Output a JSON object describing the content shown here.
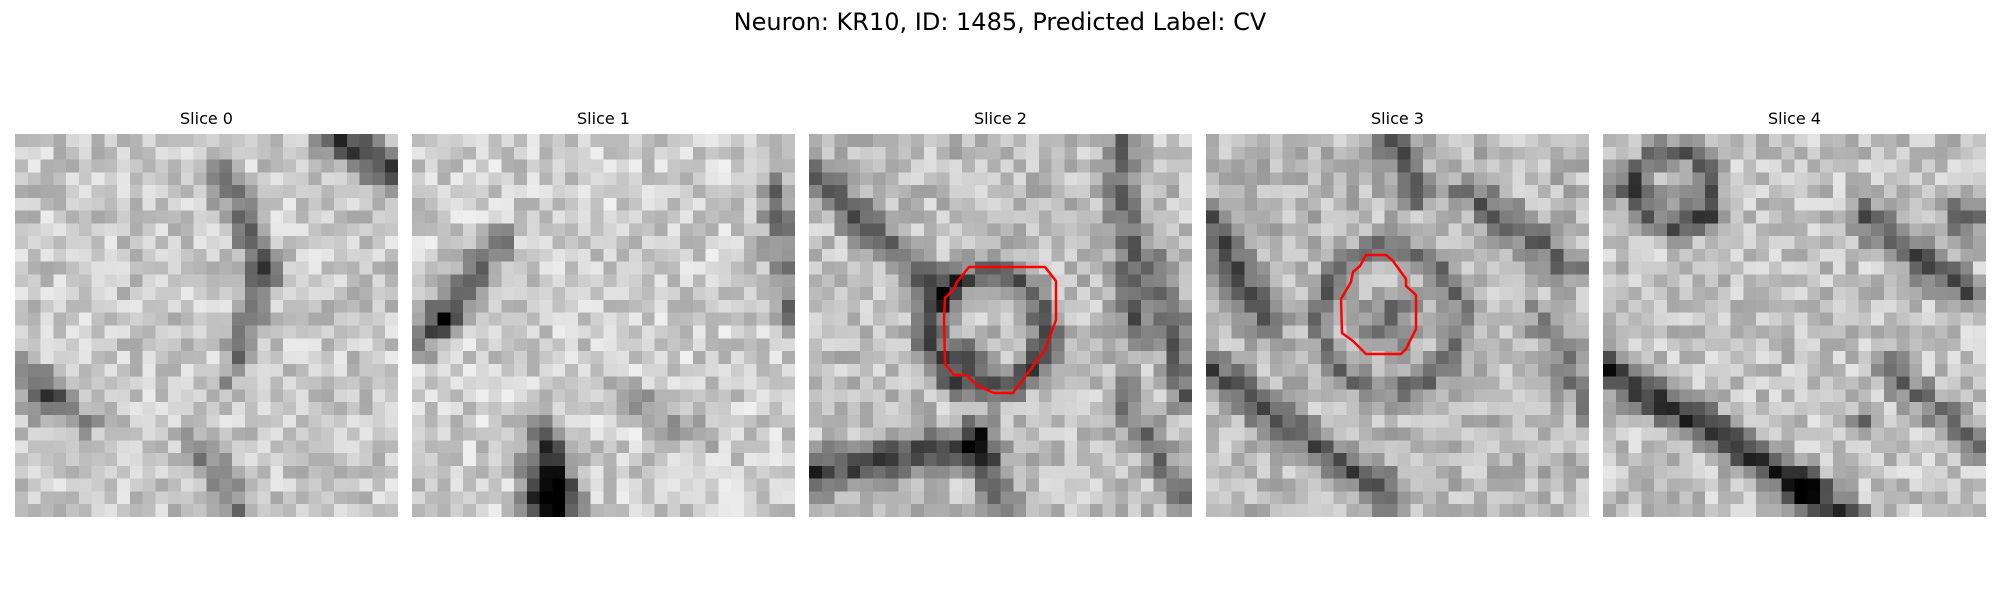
{
  "figure": {
    "title": "Neuron: KR10, ID: 1485, Predicted Label: CV"
  },
  "panels": [
    {
      "title": "Slice 0",
      "has_contour": false,
      "contour_color": "#ff0000"
    },
    {
      "title": "Slice 1",
      "has_contour": false,
      "contour_color": "#ff0000"
    },
    {
      "title": "Slice 2",
      "has_contour": true,
      "contour_color": "#ff0000"
    },
    {
      "title": "Slice 3",
      "has_contour": true,
      "contour_color": "#ff0000"
    },
    {
      "title": "Slice 4",
      "has_contour": false,
      "contour_color": "#ff0000"
    }
  ]
}
